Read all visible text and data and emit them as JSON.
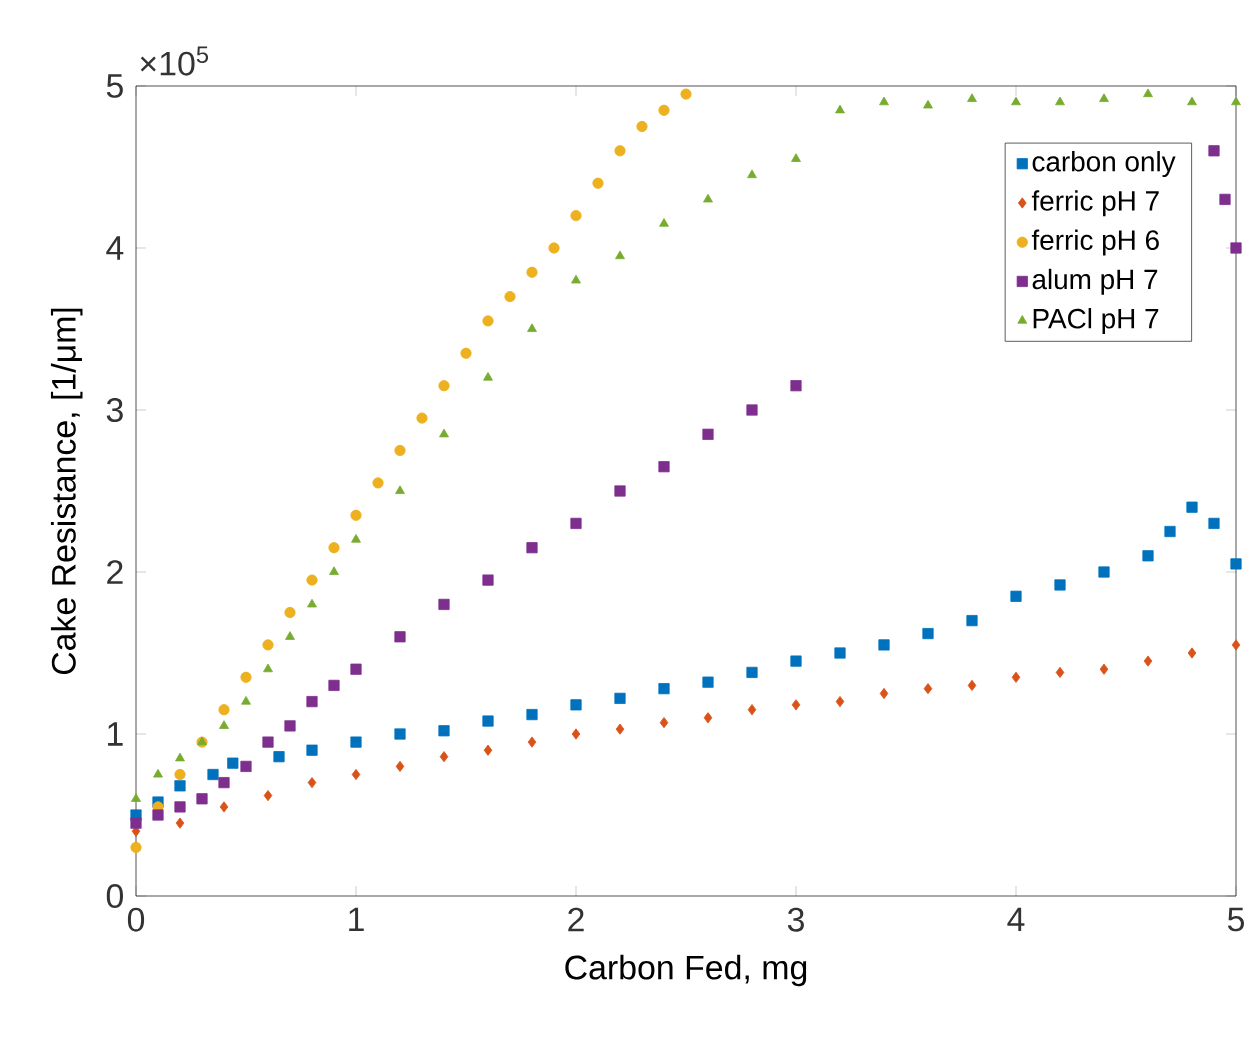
{
  "chart_data": {
    "type": "scatter",
    "xlabel": "Carbon Fed, mg",
    "ylabel": "Cake Resistance, [1/μm]",
    "annotations": [
      "×10$^{5}$"
    ],
    "xlim": [
      0,
      5
    ],
    "ylim": [
      0,
      5
    ],
    "xticks": [
      0,
      1,
      2,
      3,
      4,
      5
    ],
    "yticks": [
      0,
      1,
      2,
      3,
      4,
      5
    ],
    "grid": false,
    "legend": "top right",
    "series": [
      {
        "name": "carbon only",
        "color": "#0072bd",
        "marker": "square",
        "x": [
          0,
          0.1,
          0.2,
          0.35,
          0.44,
          0.65,
          0.8,
          1.0,
          1.2,
          1.4,
          1.6,
          1.8,
          2.0,
          2.2,
          2.4,
          2.6,
          2.8,
          3.0,
          3.2,
          3.4,
          3.6,
          3.8,
          4.0,
          4.2,
          4.4,
          4.6,
          4.7,
          4.8,
          4.9,
          5.0
        ],
        "values": [
          0.5,
          0.58,
          0.68,
          0.75,
          0.82,
          0.86,
          0.9,
          0.95,
          1.0,
          1.02,
          1.08,
          1.12,
          1.18,
          1.22,
          1.28,
          1.32,
          1.38,
          1.45,
          1.5,
          1.55,
          1.62,
          1.7,
          1.85,
          1.92,
          2.0,
          2.1,
          2.25,
          2.4,
          2.3,
          2.05
        ]
      },
      {
        "name": "ferric pH 7",
        "color": "#d95319",
        "marker": "diamond",
        "x": [
          0,
          0.2,
          0.4,
          0.6,
          0.8,
          1.0,
          1.2,
          1.4,
          1.6,
          1.8,
          2.0,
          2.2,
          2.4,
          2.6,
          2.8,
          3.0,
          3.2,
          3.4,
          3.6,
          3.8,
          4.0,
          4.2,
          4.4,
          4.6,
          4.8,
          5.0
        ],
        "values": [
          0.4,
          0.45,
          0.55,
          0.62,
          0.7,
          0.75,
          0.8,
          0.86,
          0.9,
          0.95,
          1.0,
          1.03,
          1.07,
          1.1,
          1.15,
          1.18,
          1.2,
          1.25,
          1.28,
          1.3,
          1.35,
          1.38,
          1.4,
          1.45,
          1.5,
          1.55
        ]
      },
      {
        "name": "ferric pH 6",
        "color": "#edb120",
        "marker": "circle",
        "x": [
          0,
          0.1,
          0.2,
          0.3,
          0.4,
          0.5,
          0.6,
          0.7,
          0.8,
          0.9,
          1.0,
          1.1,
          1.2,
          1.3,
          1.4,
          1.5,
          1.6,
          1.7,
          1.8,
          1.9,
          2.0,
          2.1,
          2.2,
          2.3,
          2.4,
          2.5
        ],
        "values": [
          0.3,
          0.55,
          0.75,
          0.95,
          1.15,
          1.35,
          1.55,
          1.75,
          1.95,
          2.15,
          2.35,
          2.55,
          2.75,
          2.95,
          3.15,
          3.35,
          3.55,
          3.7,
          3.85,
          4.0,
          4.2,
          4.4,
          4.6,
          4.75,
          4.85,
          4.95
        ]
      },
      {
        "name": "alum pH 7",
        "color": "#7e2f8e",
        "marker": "square",
        "x": [
          0,
          0.1,
          0.2,
          0.3,
          0.4,
          0.5,
          0.6,
          0.7,
          0.8,
          0.9,
          1.0,
          1.2,
          1.4,
          1.6,
          1.8,
          2.0,
          2.2,
          2.4,
          2.6,
          2.8,
          3.0,
          4.9,
          4.95,
          5.0
        ],
        "values": [
          0.45,
          0.5,
          0.55,
          0.6,
          0.7,
          0.8,
          0.95,
          1.05,
          1.2,
          1.3,
          1.4,
          1.6,
          1.8,
          1.95,
          2.15,
          2.3,
          2.5,
          2.65,
          2.85,
          3.0,
          3.15,
          4.6,
          4.3,
          4.0
        ]
      },
      {
        "name": "PACl pH 7",
        "color": "#77ac30",
        "marker": "triangle",
        "x": [
          0,
          0.1,
          0.2,
          0.3,
          0.4,
          0.5,
          0.6,
          0.7,
          0.8,
          0.9,
          1.0,
          1.2,
          1.4,
          1.6,
          1.8,
          2.0,
          2.2,
          2.4,
          2.6,
          2.8,
          3.0,
          3.2,
          3.4,
          3.6,
          3.8,
          4.0,
          4.2,
          4.4,
          4.6,
          4.8,
          5.0
        ],
        "values": [
          0.6,
          0.75,
          0.85,
          0.95,
          1.05,
          1.2,
          1.4,
          1.6,
          1.8,
          2.0,
          2.2,
          2.5,
          2.85,
          3.2,
          3.5,
          3.8,
          3.95,
          4.15,
          4.3,
          4.45,
          4.55,
          4.85,
          4.9,
          4.88,
          4.92,
          4.9,
          4.9,
          4.92,
          4.95,
          4.9,
          4.9
        ]
      }
    ]
  }
}
